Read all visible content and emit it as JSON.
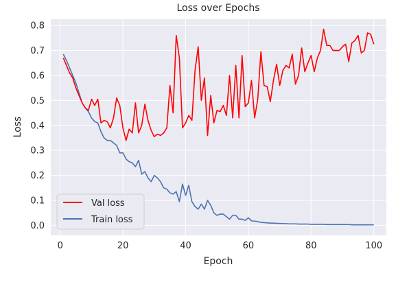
{
  "chart_data": {
    "type": "line",
    "title": "Loss over Epochs",
    "xlabel": "Epoch",
    "ylabel": "Loss",
    "xlim": [
      -3,
      104
    ],
    "ylim": [
      -0.04,
      0.825
    ],
    "xticks": [
      0,
      20,
      40,
      60,
      80,
      100
    ],
    "yticks": [
      0.0,
      0.1,
      0.2,
      0.3,
      0.4,
      0.5,
      0.6,
      0.7,
      0.8
    ],
    "ytick_labels": [
      "0.0",
      "0.1",
      "0.2",
      "0.3",
      "0.4",
      "0.5",
      "0.6",
      "0.7",
      "0.8"
    ],
    "grid": true,
    "legend_position": "lower-left",
    "background": "#eaeaf2",
    "x": [
      1,
      2,
      3,
      4,
      5,
      6,
      7,
      8,
      9,
      10,
      11,
      12,
      13,
      14,
      15,
      16,
      17,
      18,
      19,
      20,
      21,
      22,
      23,
      24,
      25,
      26,
      27,
      28,
      29,
      30,
      31,
      32,
      33,
      34,
      35,
      36,
      37,
      38,
      39,
      40,
      41,
      42,
      43,
      44,
      45,
      46,
      47,
      48,
      49,
      50,
      51,
      52,
      53,
      54,
      55,
      56,
      57,
      58,
      59,
      60,
      61,
      62,
      63,
      64,
      65,
      66,
      67,
      68,
      69,
      70,
      71,
      72,
      73,
      74,
      75,
      76,
      77,
      78,
      79,
      80,
      81,
      82,
      83,
      84,
      85,
      86,
      87,
      88,
      89,
      90,
      91,
      92,
      93,
      94,
      95,
      96,
      97,
      98,
      99,
      100
    ],
    "series": [
      {
        "name": "Val loss",
        "color": "#ff0000",
        "values": [
          0.67,
          0.64,
          0.61,
          0.59,
          0.55,
          0.52,
          0.49,
          0.47,
          0.46,
          0.505,
          0.48,
          0.505,
          0.41,
          0.42,
          0.415,
          0.39,
          0.43,
          0.51,
          0.48,
          0.39,
          0.34,
          0.385,
          0.37,
          0.49,
          0.37,
          0.4,
          0.485,
          0.42,
          0.38,
          0.355,
          0.365,
          0.36,
          0.37,
          0.39,
          0.56,
          0.45,
          0.76,
          0.67,
          0.39,
          0.41,
          0.44,
          0.42,
          0.62,
          0.715,
          0.5,
          0.59,
          0.36,
          0.52,
          0.41,
          0.46,
          0.455,
          0.48,
          0.44,
          0.6,
          0.43,
          0.64,
          0.43,
          0.68,
          0.475,
          0.49,
          0.58,
          0.43,
          0.505,
          0.695,
          0.56,
          0.555,
          0.495,
          0.58,
          0.645,
          0.56,
          0.62,
          0.64,
          0.63,
          0.685,
          0.565,
          0.6,
          0.71,
          0.615,
          0.65,
          0.68,
          0.615,
          0.67,
          0.7,
          0.785,
          0.72,
          0.72,
          0.7,
          0.7,
          0.7,
          0.715,
          0.725,
          0.655,
          0.73,
          0.74,
          0.76,
          0.69,
          0.7,
          0.77,
          0.765,
          0.725
        ]
      },
      {
        "name": "Train loss",
        "color": "#4c72b0",
        "values": [
          0.685,
          0.66,
          0.63,
          0.6,
          0.57,
          0.53,
          0.49,
          0.47,
          0.455,
          0.43,
          0.415,
          0.41,
          0.375,
          0.35,
          0.34,
          0.34,
          0.33,
          0.32,
          0.29,
          0.29,
          0.265,
          0.255,
          0.25,
          0.235,
          0.26,
          0.205,
          0.215,
          0.19,
          0.175,
          0.2,
          0.19,
          0.175,
          0.15,
          0.145,
          0.13,
          0.125,
          0.135,
          0.095,
          0.165,
          0.12,
          0.16,
          0.095,
          0.075,
          0.065,
          0.085,
          0.065,
          0.1,
          0.08,
          0.05,
          0.04,
          0.045,
          0.045,
          0.035,
          0.025,
          0.04,
          0.04,
          0.025,
          0.025,
          0.02,
          0.03,
          0.018,
          0.017,
          0.015,
          0.012,
          0.011,
          0.01,
          0.009,
          0.009,
          0.008,
          0.008,
          0.007,
          0.007,
          0.006,
          0.006,
          0.006,
          0.005,
          0.005,
          0.005,
          0.005,
          0.004,
          0.004,
          0.004,
          0.004,
          0.004,
          0.003,
          0.003,
          0.003,
          0.003,
          0.003,
          0.003,
          0.003,
          0.003,
          0.002,
          0.002,
          0.002,
          0.002,
          0.002,
          0.002,
          0.002,
          0.002
        ]
      }
    ]
  }
}
